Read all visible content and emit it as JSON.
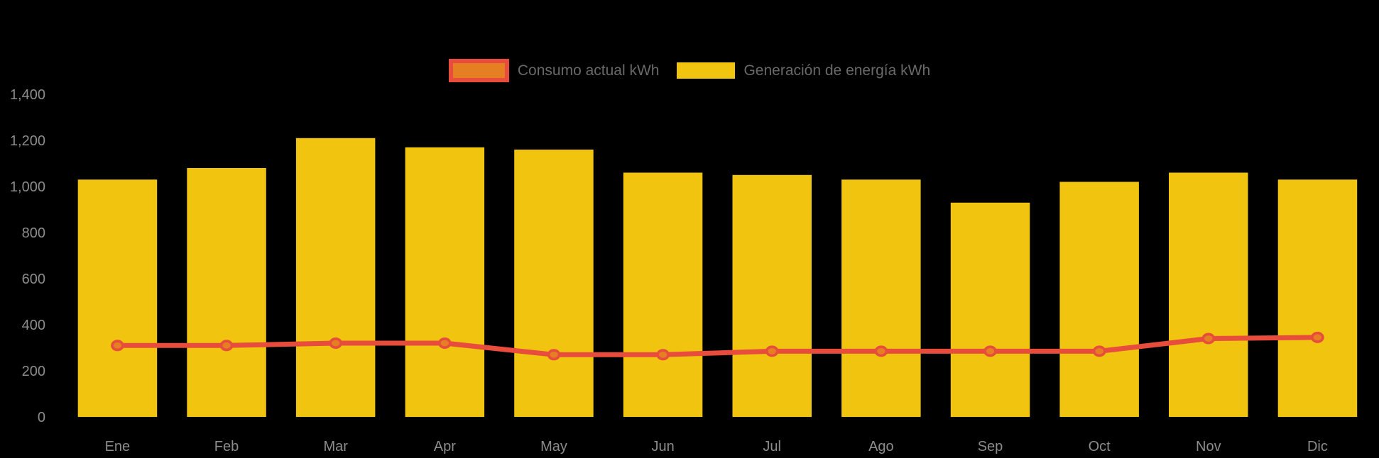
{
  "chart_data": {
    "type": "bar",
    "title": "",
    "xlabel": "",
    "ylabel": "",
    "categories": [
      "Ene",
      "Feb",
      "Mar",
      "Apr",
      "May",
      "Jun",
      "Jul",
      "Ago",
      "Sep",
      "Oct",
      "Nov",
      "Dic"
    ],
    "series": [
      {
        "name": "Consumo actual kWh",
        "type": "line",
        "color": "#e74c3c",
        "point_fill": "#e67e22",
        "values": [
          310,
          310,
          320,
          320,
          270,
          270,
          285,
          285,
          285,
          285,
          340,
          345
        ]
      },
      {
        "name": "Generación de energía kWh",
        "type": "bar",
        "color": "#f1c40f",
        "values": [
          1030,
          1080,
          1210,
          1170,
          1160,
          1060,
          1050,
          1030,
          930,
          1020,
          1060,
          1030
        ]
      }
    ],
    "ylim": [
      0,
      1400
    ],
    "ytick_step": 200,
    "ytick_labels": [
      "0",
      "200",
      "400",
      "600",
      "800",
      "1,000",
      "1,200",
      "1,400"
    ],
    "grid": false,
    "legend_position": "top",
    "background": "#000000",
    "axis_label_color": "#8c8c8c",
    "legend_text_color": "#696969"
  }
}
